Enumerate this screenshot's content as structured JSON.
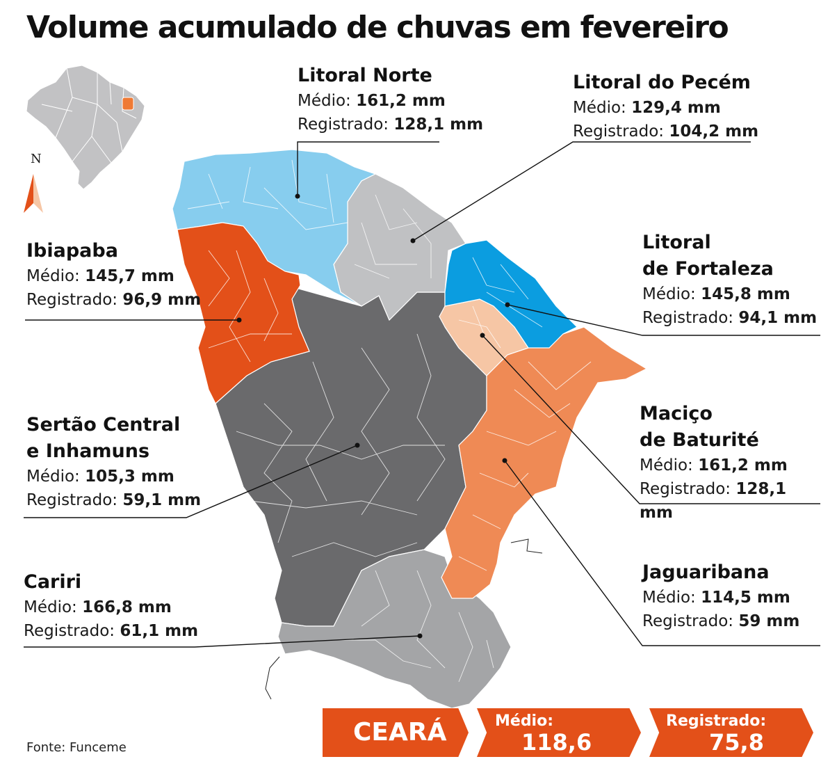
{
  "title": "Volume acumulado de chuvas em fevereiro",
  "compass": "N",
  "source": "Fonte: Funceme",
  "regions": [
    {
      "id": "litoral-norte",
      "name_lines": [
        "Litoral Norte"
      ],
      "medio_label": "Médio:",
      "medio": "161,2 mm",
      "registrado_label": "Registrado:",
      "registrado": "128,1 mm",
      "color": "#87cdee"
    },
    {
      "id": "litoral-pecem",
      "name_lines": [
        "Litoral do Pecém"
      ],
      "medio_label": "Médio:",
      "medio": "129,4 mm",
      "registrado_label": "Registrado:",
      "registrado": "104,2 mm",
      "color": "#c0c1c3"
    },
    {
      "id": "litoral-fortaleza",
      "name_lines": [
        "Litoral",
        "de Fortaleza"
      ],
      "medio_label": "Médio:",
      "medio": "145,8 mm",
      "registrado_label": "Registrado:",
      "registrado": "94,1 mm",
      "color": "#0b9de0"
    },
    {
      "id": "ibiapaba",
      "name_lines": [
        "Ibiapaba"
      ],
      "medio_label": "Médio:",
      "medio": "145,7 mm",
      "registrado_label": "Registrado:",
      "registrado": "96,9 mm",
      "color": "#e35019"
    },
    {
      "id": "macico-baturite",
      "name_lines": [
        "Maciço",
        "de Baturité"
      ],
      "medio_label": "Médio:",
      "medio": "161,2 mm",
      "registrado_label": "Registrado:",
      "registrado": "128,1 mm",
      "color": "#f6c6a5"
    },
    {
      "id": "sertao-central",
      "name_lines": [
        "Sertão Central",
        "e Inhamuns"
      ],
      "medio_label": "Médio:",
      "medio": "105,3 mm",
      "registrado_label": "Registrado:",
      "registrado": "59,1 mm",
      "color": "#6a6a6c"
    },
    {
      "id": "jaguaribana",
      "name_lines": [
        "Jaguaribana"
      ],
      "medio_label": "Médio:",
      "medio": "114,5 mm",
      "registrado_label": "Registrado:",
      "registrado": "59 mm",
      "color": "#ef8a55"
    },
    {
      "id": "cariri",
      "name_lines": [
        "Cariri"
      ],
      "medio_label": "Médio:",
      "medio": "166,8 mm",
      "registrado_label": "Registrado:",
      "registrado": "61,1 mm",
      "color": "#a4a5a7"
    }
  ],
  "summary": {
    "state": "CEARÁ",
    "medio_label": "Médio:",
    "medio": "118,6 mm",
    "registrado_label": "Registrado:",
    "registrado": "75,8 mm",
    "color": "#e35019"
  }
}
